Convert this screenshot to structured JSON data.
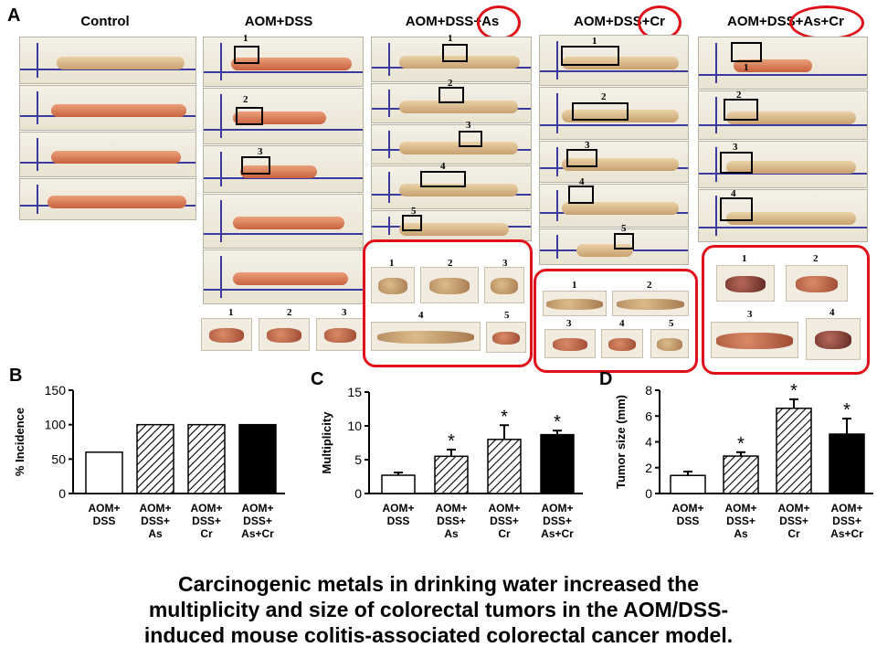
{
  "panel_a": {
    "letter": "A",
    "groups": [
      {
        "title": "Control",
        "tumor_numbers": []
      },
      {
        "title": "AOM+DSS",
        "tumor_numbers": [
          "1",
          "2",
          "3"
        ]
      },
      {
        "title": "AOM+DSS+As",
        "tumor_numbers": [
          "1",
          "2",
          "3",
          "4",
          "5"
        ]
      },
      {
        "title": "AOM+DSS+Cr",
        "tumor_numbers": [
          "1",
          "2",
          "3",
          "4",
          "5"
        ]
      },
      {
        "title": "AOM+DSS+As+Cr",
        "tumor_numbers": [
          "1",
          "2",
          "3",
          "4"
        ]
      }
    ],
    "highlight_color": "#e0101a"
  },
  "chart_data": [
    {
      "letter": "B",
      "type": "bar",
      "ylabel": "% Incidence",
      "ylim": [
        0,
        150
      ],
      "yticks": [
        "0",
        "50",
        "100",
        "150"
      ],
      "categories": [
        [
          "AOM+",
          "DSS"
        ],
        [
          "AOM+",
          "DSS+",
          "As"
        ],
        [
          "AOM+",
          "DSS+",
          "Cr"
        ],
        [
          "AOM+",
          "DSS+",
          "As+Cr"
        ]
      ],
      "values": [
        60,
        100,
        100,
        100
      ],
      "errors": [
        0,
        0,
        0,
        0
      ],
      "significance": [
        "",
        "",
        "",
        ""
      ],
      "fills": [
        "white",
        "hatch",
        "hatch",
        "black"
      ]
    },
    {
      "letter": "C",
      "type": "bar",
      "ylabel": "Multiplicity",
      "ylim": [
        0,
        15
      ],
      "yticks": [
        "0",
        "5",
        "10",
        "15"
      ],
      "categories": [
        [
          "AOM+",
          "DSS"
        ],
        [
          "AOM+",
          "DSS+",
          "As"
        ],
        [
          "AOM+",
          "DSS+",
          "Cr"
        ],
        [
          "AOM+",
          "DSS+",
          "As+Cr"
        ]
      ],
      "values": [
        2.7,
        5.5,
        8.0,
        8.7
      ],
      "errors": [
        0.4,
        1.0,
        2.1,
        0.6
      ],
      "significance": [
        "",
        "*",
        "*",
        "*"
      ],
      "fills": [
        "white",
        "hatch",
        "hatch",
        "black"
      ]
    },
    {
      "letter": "D",
      "type": "bar",
      "ylabel": "Tumor size (mm)",
      "ylim": [
        0,
        8
      ],
      "yticks": [
        "0",
        "2",
        "4",
        "6",
        "8"
      ],
      "categories": [
        [
          "AOM+",
          "DSS"
        ],
        [
          "AOM+",
          "DSS+",
          "As"
        ],
        [
          "AOM+",
          "DSS+",
          "Cr"
        ],
        [
          "AOM+",
          "DSS+",
          "As+Cr"
        ]
      ],
      "values": [
        1.4,
        2.9,
        6.6,
        4.6
      ],
      "errors": [
        0.3,
        0.3,
        0.7,
        1.2
      ],
      "significance": [
        "",
        "*",
        "*",
        "*"
      ],
      "fills": [
        "white",
        "hatch",
        "hatch",
        "black"
      ]
    }
  ],
  "caption": {
    "line1": "Carcinogenic metals in drinking water increased the",
    "line2": "multiplicity and size of colorectal tumors in the AOM/DSS-",
    "line3": "induced mouse colitis-associated colorectal cancer model."
  }
}
